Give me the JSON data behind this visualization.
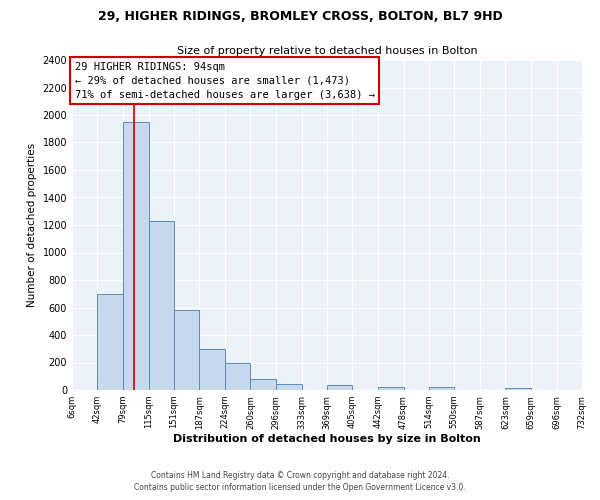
{
  "title": "29, HIGHER RIDINGS, BROMLEY CROSS, BOLTON, BL7 9HD",
  "subtitle": "Size of property relative to detached houses in Bolton",
  "xlabel": "Distribution of detached houses by size in Bolton",
  "ylabel": "Number of detached properties",
  "footer_line1": "Contains HM Land Registry data © Crown copyright and database right 2024.",
  "footer_line2": "Contains public sector information licensed under the Open Government Licence v3.0.",
  "bin_edges": [
    6,
    42,
    79,
    115,
    151,
    187,
    224,
    260,
    296,
    333,
    369,
    405,
    442,
    478,
    514,
    550,
    587,
    623,
    659,
    696,
    732
  ],
  "bin_counts": [
    0,
    700,
    1950,
    1230,
    580,
    300,
    200,
    80,
    45,
    0,
    35,
    0,
    20,
    0,
    25,
    0,
    0,
    12,
    0,
    0
  ],
  "property_size": 94,
  "property_label": "29 HIGHER RIDINGS: 94sqm",
  "annotation_line1": "← 29% of detached houses are smaller (1,473)",
  "annotation_line2": "71% of semi-detached houses are larger (3,638) →",
  "bar_color": "#c8d9ee",
  "bar_edge_color": "#5b8db8",
  "vline_color": "#cc0000",
  "box_edge_color": "#cc0000",
  "background_color": "#edf1f8",
  "ylim": [
    0,
    2400
  ],
  "yticks": [
    0,
    200,
    400,
    600,
    800,
    1000,
    1200,
    1400,
    1600,
    1800,
    2000,
    2200,
    2400
  ],
  "tick_labels": [
    "6sqm",
    "42sqm",
    "79sqm",
    "115sqm",
    "151sqm",
    "187sqm",
    "224sqm",
    "260sqm",
    "296sqm",
    "333sqm",
    "369sqm",
    "405sqm",
    "442sqm",
    "478sqm",
    "514sqm",
    "550sqm",
    "587sqm",
    "623sqm",
    "659sqm",
    "696sqm",
    "732sqm"
  ]
}
